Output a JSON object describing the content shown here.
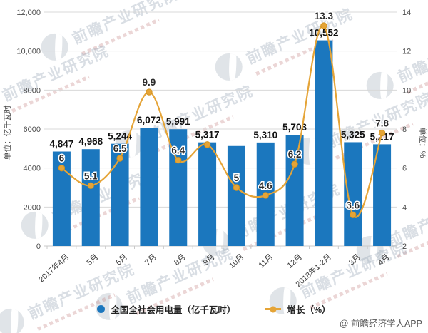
{
  "attribution": "@ 前瞻经济学人APP",
  "watermark": {
    "text": "前瞻产业研究院"
  },
  "chart_data": {
    "type": "bar",
    "subtype": "bar+line combo",
    "categories": [
      "2017年4月",
      "5月",
      "6月",
      "7月",
      "8月",
      "9月",
      "10月",
      "11月",
      "12月",
      "2018年1-2月",
      "3月",
      "4月"
    ],
    "series": [
      {
        "name": "全国全社会用电量（亿千瓦时）",
        "type": "bar",
        "axis": "left",
        "color": "#1B77BE",
        "values": [
          4847,
          4968,
          5244,
          6072,
          5991,
          5317,
          5130,
          5310,
          5703,
          10552,
          5325,
          5217
        ],
        "labels": [
          "4,847",
          "4,968",
          "5,244",
          "6,072",
          "5,991",
          "5,317",
          "",
          "5,310",
          "5,703",
          "10,552",
          "5,325",
          "5,217"
        ]
      },
      {
        "name": "增长（%）",
        "type": "line",
        "axis": "right",
        "color": "#E5A437",
        "values": [
          6,
          5.1,
          6.5,
          9.9,
          6.4,
          7.2,
          5,
          4.6,
          6.2,
          13.3,
          3.6,
          7.8
        ],
        "labels": [
          "6",
          "5.1",
          "6.5",
          "9.9",
          "6.4",
          "",
          "5",
          "4.6",
          "6.2",
          "13.3",
          "3.6",
          "7.8"
        ]
      }
    ],
    "left_axis": {
      "label": "单位：亿千瓦时",
      "min": 0,
      "max": 12000,
      "tick_labels": [
        "12,000",
        "10,000",
        "8000",
        "6000",
        "4000",
        "2000",
        "0"
      ]
    },
    "right_axis": {
      "label": "单位：%",
      "min": 2,
      "max": 14,
      "tick_labels": [
        "14",
        "12",
        "10",
        "8",
        "6",
        "4",
        "2"
      ]
    },
    "grid": true,
    "legend_position": "bottom",
    "colors": {
      "grid": "#d8d8d8",
      "axis": "#c9c9c9",
      "tick_text": "#4d4d4d",
      "bar_label": "#111111",
      "growth_label": "#2b2b2b"
    }
  }
}
